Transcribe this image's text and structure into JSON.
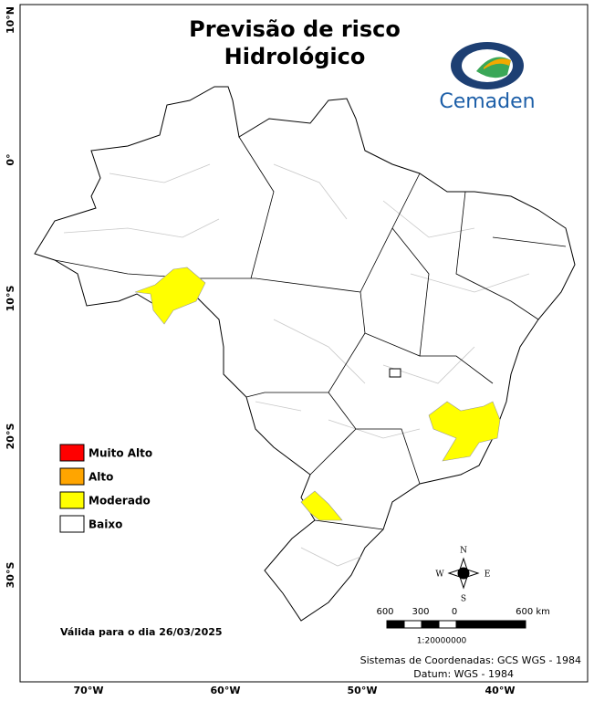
{
  "map": {
    "title": [
      "Previsão de risco",
      "Hidrológico"
    ],
    "logo": "Cemaden",
    "lat_labels": [
      "10°N",
      "0°",
      "10°S",
      "20°S",
      "30°S"
    ],
    "lon_labels": [
      "70°W",
      "60°W",
      "50°W",
      "40°W"
    ],
    "legend": [
      {
        "label": "Muito Alto",
        "color": "#ff0000"
      },
      {
        "label": "Alto",
        "color": "#ffa500"
      },
      {
        "label": "Moderado",
        "color": "#ffff00"
      },
      {
        "label": "Baixo",
        "color": "#ffffff"
      }
    ],
    "valid": "Válida para o dia 26/03/2025",
    "compass": [
      "N",
      "S",
      "E",
      "W"
    ],
    "scale_labels": [
      "600",
      "300",
      "0",
      "600 km"
    ],
    "scale_ratio": "1:20000000",
    "credits": [
      "Sistemas de Coordenadas: GCS WGS - 1984",
      "Datum: WGS - 1984"
    ]
  }
}
